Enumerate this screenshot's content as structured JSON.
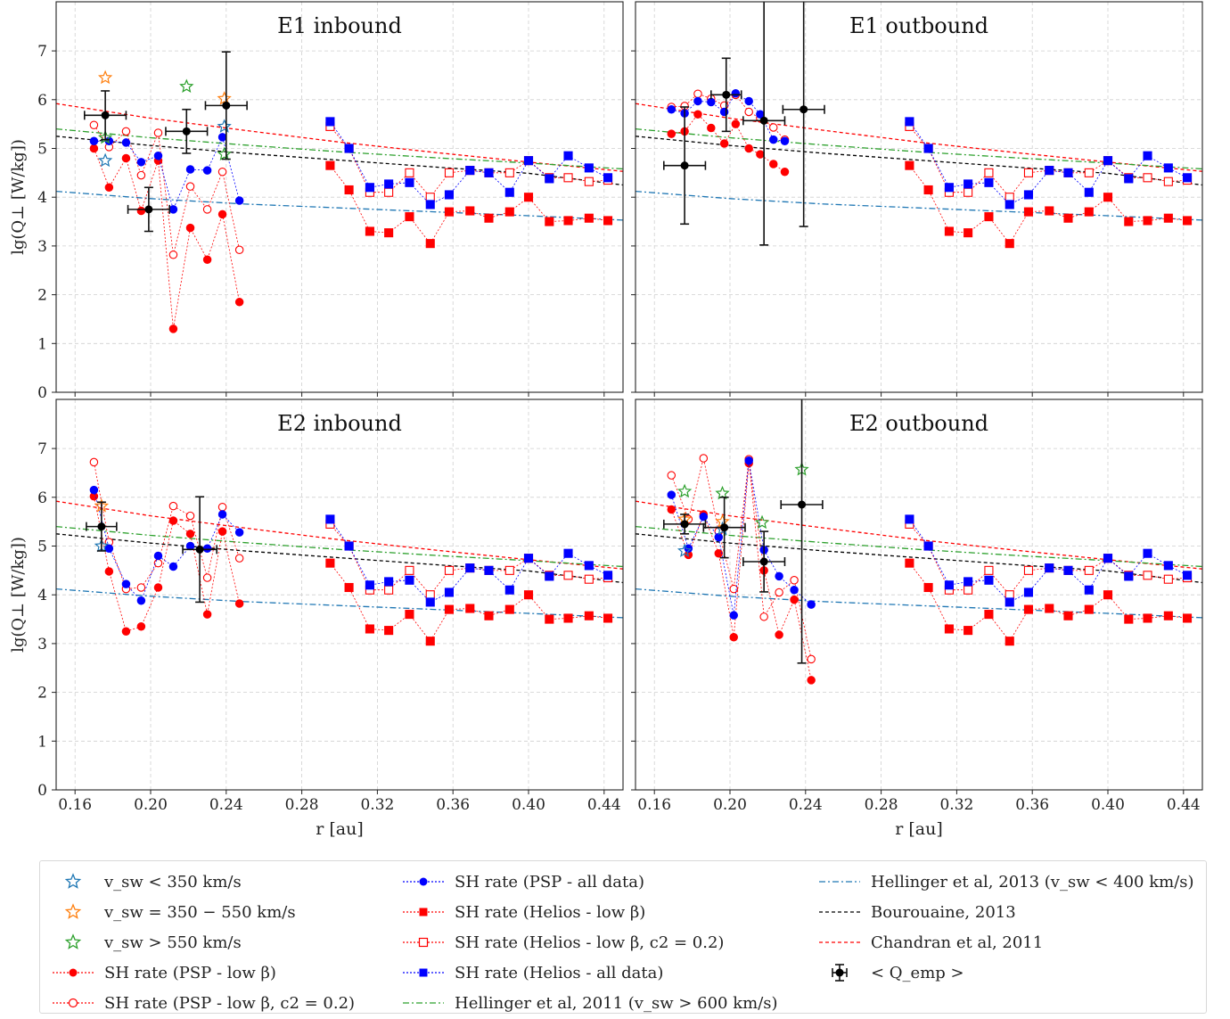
{
  "figure": {
    "ylabel": "lg(Q⊥ [W/kg])",
    "xlabel": "r [au]",
    "x_ticks": [
      "0.16",
      "0.20",
      "0.24",
      "0.28",
      "0.32",
      "0.36",
      "0.40",
      "0.44"
    ],
    "y_ticks": [
      "0",
      "1",
      "2",
      "3",
      "4",
      "5",
      "6",
      "7"
    ]
  },
  "colors": {
    "blue_star": "#1f77b4",
    "orange_star": "#ff7f0e",
    "green_star": "#2ca02c",
    "red": "#ff0000",
    "blue": "#0000ff",
    "black": "#000000"
  },
  "legend": {
    "items": [
      {
        "key": "vsw_lt_350",
        "label": "v_sw < 350 km/s"
      },
      {
        "key": "vsw_350_550",
        "label": "v_sw = 350 − 550 km/s"
      },
      {
        "key": "vsw_gt_550",
        "label": "v_sw > 550 km/s"
      },
      {
        "key": "psp_low_beta",
        "label": "SH rate (PSP - low β)"
      },
      {
        "key": "psp_low_beta_c2",
        "label": "SH rate (PSP - low β, c2 = 0.2)"
      },
      {
        "key": "psp_all",
        "label": "SH rate (PSP - all data)"
      },
      {
        "key": "helios_low_beta",
        "label": "SH rate (Helios - low β)"
      },
      {
        "key": "helios_low_beta_c2",
        "label": "SH rate (Helios - low β, c2 = 0.2)"
      },
      {
        "key": "helios_all",
        "label": "SH rate (Helios - all data)"
      },
      {
        "key": "hellinger2011",
        "label": "Hellinger et al, 2011 (v_sw > 600 km/s)"
      },
      {
        "key": "hellinger2013",
        "label": "Hellinger et al, 2013 (v_sw < 400 km/s)"
      },
      {
        "key": "bourouaine",
        "label": "Bourouaine, 2013"
      },
      {
        "key": "chandran",
        "label": "Chandran et al, 2011"
      },
      {
        "key": "qemp",
        "label": "< Q_emp >"
      }
    ]
  },
  "chart_data": {
    "type": "line",
    "xlim": [
      0.15,
      0.45
    ],
    "ylim": [
      0,
      8
    ],
    "grid": true,
    "legend_placement": "bottom",
    "reference_curves": {
      "chandran": {
        "x": [
          0.15,
          0.2,
          0.25,
          0.3,
          0.35,
          0.4,
          0.45
        ],
        "y": [
          5.92,
          5.62,
          5.37,
          5.13,
          4.92,
          4.72,
          4.53
        ]
      },
      "hellinger2011": {
        "x": [
          0.15,
          0.2,
          0.25,
          0.3,
          0.35,
          0.4,
          0.45
        ],
        "y": [
          5.4,
          5.22,
          5.07,
          4.93,
          4.81,
          4.7,
          4.58
        ]
      },
      "bourouaine": {
        "x": [
          0.15,
          0.2,
          0.25,
          0.3,
          0.35,
          0.4,
          0.45
        ],
        "y": [
          5.25,
          5.06,
          4.9,
          4.76,
          4.62,
          4.49,
          4.25
        ]
      },
      "hellinger2013": {
        "x": [
          0.15,
          0.2,
          0.25,
          0.3,
          0.35,
          0.4,
          0.45
        ],
        "y": [
          4.12,
          3.97,
          3.86,
          3.78,
          3.7,
          3.62,
          3.53
        ]
      }
    },
    "helios": {
      "x": [
        0.295,
        0.305,
        0.316,
        0.326,
        0.337,
        0.348,
        0.358,
        0.369,
        0.379,
        0.39,
        0.4,
        0.411,
        0.421,
        0.432,
        0.442
      ],
      "all": [
        5.55,
        5.0,
        4.2,
        4.27,
        4.3,
        3.85,
        4.05,
        4.55,
        4.5,
        4.1,
        4.75,
        4.38,
        4.85,
        4.6,
        4.4
      ],
      "low_beta": [
        4.65,
        4.15,
        3.3,
        3.27,
        3.6,
        3.05,
        3.7,
        3.72,
        3.57,
        3.7,
        4.0,
        3.5,
        3.52,
        3.57,
        3.52
      ],
      "low_beta_c2": [
        5.45,
        5.0,
        4.1,
        4.1,
        4.5,
        4.0,
        4.5,
        4.55,
        4.5,
        4.5,
        4.75,
        4.4,
        4.4,
        4.32,
        4.35
      ]
    },
    "panels": [
      {
        "title": "E1 inbound",
        "psp": {
          "x": [
            0.17,
            0.178,
            0.187,
            0.195,
            0.204,
            0.212,
            0.221,
            0.23,
            0.238,
            0.247
          ],
          "all": [
            5.15,
            5.15,
            5.12,
            4.72,
            4.85,
            3.75,
            4.57,
            4.55,
            5.23,
            3.93
          ],
          "low_beta": [
            5.0,
            4.2,
            4.8,
            3.72,
            4.75,
            1.3,
            3.37,
            2.72,
            3.65,
            1.85
          ],
          "low_beta_c2": [
            5.48,
            5.03,
            5.35,
            4.45,
            5.32,
            2.82,
            4.22,
            3.75,
            4.52,
            2.92
          ]
        },
        "stars": {
          "lt350": [
            {
              "x": 0.176,
              "y": 4.75
            },
            {
              "x": 0.239,
              "y": 5.45
            }
          ],
          "mid": [
            {
              "x": 0.176,
              "y": 6.45
            },
            {
              "x": 0.239,
              "y": 6.02
            }
          ],
          "gt550": [
            {
              "x": 0.176,
              "y": 5.22
            },
            {
              "x": 0.219,
              "y": 6.27
            },
            {
              "x": 0.239,
              "y": 4.88
            }
          ]
        },
        "qemp": [
          {
            "x": 0.176,
            "y": 5.68,
            "xerr": 0.011,
            "yerr": 0.5
          },
          {
            "x": 0.199,
            "y": 3.75,
            "xerr": 0.011,
            "yerr": 0.45
          },
          {
            "x": 0.219,
            "y": 5.35,
            "xerr": 0.011,
            "yerr": 0.45
          },
          {
            "x": 0.24,
            "y": 5.88,
            "xerr": 0.011,
            "yerr": 1.1
          }
        ]
      },
      {
        "title": "E1 outbound",
        "psp": {
          "x": [
            0.169,
            0.176,
            0.183,
            0.19,
            0.197,
            0.203,
            0.21,
            0.216,
            0.223,
            0.229
          ],
          "all": [
            5.8,
            5.72,
            5.97,
            5.95,
            5.75,
            6.13,
            5.97,
            5.7,
            5.18,
            5.15
          ],
          "low_beta": [
            5.3,
            5.35,
            5.7,
            5.42,
            5.1,
            5.5,
            5.0,
            4.88,
            4.68,
            4.52
          ],
          "low_beta_c2": [
            5.85,
            5.87,
            6.12,
            6.02,
            5.88,
            6.1,
            5.75,
            5.62,
            5.43,
            5.18
          ]
        },
        "stars": {
          "lt350": [],
          "mid": [],
          "gt550": []
        },
        "qemp": [
          {
            "x": 0.176,
            "y": 4.65,
            "xerr": 0.011,
            "yerr": 1.2
          },
          {
            "x": 0.198,
            "y": 6.1,
            "xerr": 0.008,
            "yerr": 0.75
          },
          {
            "x": 0.218,
            "y": 5.57,
            "xerr": 0.011,
            "yerr": 2.55
          },
          {
            "x": 0.239,
            "y": 5.8,
            "xerr": 0.011,
            "yerr": 2.4
          }
        ]
      },
      {
        "title": "E2 inbound",
        "psp": {
          "x": [
            0.17,
            0.178,
            0.187,
            0.195,
            0.204,
            0.212,
            0.221,
            0.23,
            0.238,
            0.247
          ],
          "all": [
            6.15,
            4.95,
            4.22,
            3.88,
            4.8,
            4.58,
            5.0,
            4.95,
            5.65,
            5.28
          ],
          "low_beta": [
            6.02,
            4.48,
            3.25,
            3.35,
            4.15,
            5.52,
            5.25,
            3.6,
            5.3,
            3.82
          ],
          "low_beta_c2": [
            6.72,
            5.08,
            4.12,
            4.15,
            4.65,
            5.82,
            5.62,
            4.35,
            5.8,
            4.75
          ]
        },
        "stars": {
          "lt350": [
            {
              "x": 0.174,
              "y": 5.0
            }
          ],
          "mid": [
            {
              "x": 0.174,
              "y": 5.82
            }
          ],
          "gt550": []
        },
        "qemp": [
          {
            "x": 0.174,
            "y": 5.4,
            "xerr": 0.008,
            "yerr": 0.5
          },
          {
            "x": 0.226,
            "y": 4.93,
            "xerr": 0.009,
            "yerr": 1.08
          }
        ]
      },
      {
        "title": "E2 outbound",
        "psp": {
          "x": [
            0.169,
            0.178,
            0.186,
            0.194,
            0.202,
            0.21,
            0.218,
            0.226,
            0.234,
            0.243
          ],
          "all": [
            6.05,
            4.95,
            5.6,
            5.18,
            3.58,
            6.75,
            4.92,
            4.38,
            4.1,
            3.8
          ],
          "low_beta": [
            5.75,
            4.82,
            5.65,
            4.85,
            3.13,
            6.7,
            4.5,
            3.18,
            3.9,
            2.25
          ],
          "low_beta_c2": [
            6.45,
            5.55,
            6.8,
            5.3,
            4.12,
            6.78,
            3.55,
            4.05,
            4.3,
            2.68
          ]
        },
        "stars": {
          "lt350": [
            {
              "x": 0.176,
              "y": 4.9
            },
            {
              "x": 0.196,
              "y": 5.35
            }
          ],
          "mid": [
            {
              "x": 0.176,
              "y": 5.55
            },
            {
              "x": 0.196,
              "y": 5.5
            }
          ],
          "gt550": [
            {
              "x": 0.176,
              "y": 6.12
            },
            {
              "x": 0.196,
              "y": 6.08
            },
            {
              "x": 0.217,
              "y": 5.48
            },
            {
              "x": 0.238,
              "y": 6.57
            }
          ]
        },
        "qemp": [
          {
            "x": 0.176,
            "y": 5.45,
            "xerr": 0.011,
            "yerr": 0.2
          },
          {
            "x": 0.197,
            "y": 5.38,
            "xerr": 0.011,
            "yerr": 0.62
          },
          {
            "x": 0.218,
            "y": 4.68,
            "xerr": 0.011,
            "yerr": 0.62
          },
          {
            "x": 0.238,
            "y": 5.85,
            "xerr": 0.011,
            "yerr": 3.25
          }
        ]
      }
    ]
  }
}
